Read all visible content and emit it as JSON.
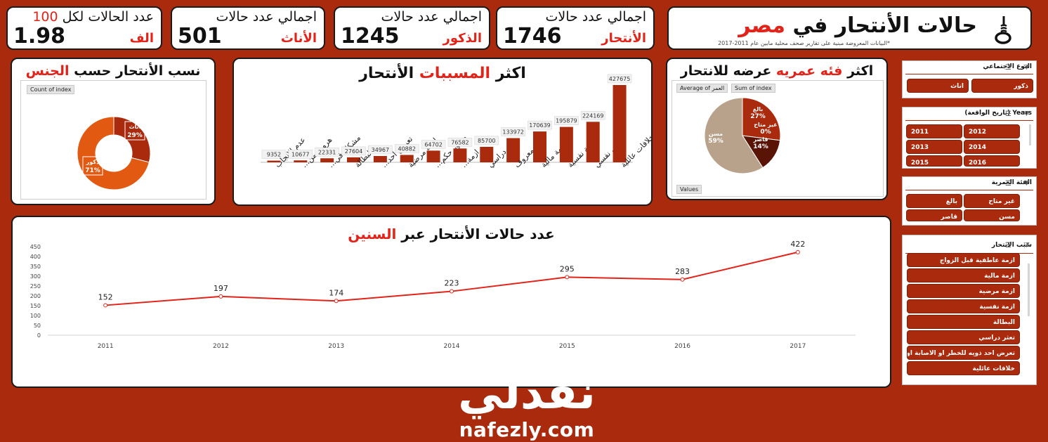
{
  "header": {
    "title_main": "حالات الأنتحار في",
    "title_highlight": "مصر",
    "subtitle": "*البيانات المعروضة مبنية على تقارير صحف محلية مابين عام 2011-2017",
    "icon": "noose-icon"
  },
  "kpis": [
    {
      "title": "اجمالي عدد حالات",
      "value": "1746",
      "sub": "الأنتحار"
    },
    {
      "title": "اجمالي عدد حالات",
      "value": "1245",
      "sub": "الذكور"
    },
    {
      "title": "اجمالي عدد حالات",
      "value": "501",
      "sub": "الأناث"
    },
    {
      "title_prefix": "عدد الحالات لكل",
      "title_num": "100",
      "value": "1.98",
      "sub": "الف"
    }
  ],
  "gender_chart": {
    "title_main": "نسب الأنتحار حسب",
    "title_highlight": "الجنس",
    "field_button": "Count of index",
    "chart_data": {
      "type": "pie",
      "donut": true,
      "labels": [
        "اناث",
        "ذكور"
      ],
      "values": [
        29,
        71
      ],
      "data_labels": [
        "29%",
        "71%"
      ],
      "colors": [
        "#a92a0d",
        "#e25a12"
      ]
    }
  },
  "causes_chart": {
    "title_prefix": "اكثر",
    "title_highlight": "المسببات",
    "title_suffix": "الأنتحار",
    "chart_data": {
      "type": "bar",
      "categories": [
        "عدم الانجاب",
        "هروب من...",
        "مشكلة في...",
        "البطالة",
        "تعرض احد...",
        "ازمة مرضية",
        "صدور حكم...",
        "ازمة...",
        "تعثر دراسي",
        "غير معروف",
        "ازمة مالية",
        "ازمة نفسية",
        "مرض نفسي",
        "خلافات عائلية"
      ],
      "values": [
        9352,
        10677,
        22331,
        27604,
        34967,
        40882,
        64702,
        76582,
        85700,
        133972,
        170639,
        195879,
        224169,
        427675
      ],
      "color": "#a92a0d"
    }
  },
  "age_chart": {
    "title_prefix": "اكثر",
    "title_highlight": "فئه عمريه",
    "title_suffix": "عرضه للانتحار",
    "field_buttons": [
      "Average of العمر",
      "Sum of index"
    ],
    "values_button": "Values",
    "chart_data": {
      "type": "pie",
      "labels": [
        "بالغ",
        "غير متاح",
        "قاصر",
        "مسن"
      ],
      "values": [
        27,
        0,
        14,
        59
      ],
      "data_labels": [
        "27%",
        "0%",
        "14%",
        "59%"
      ],
      "colors": [
        "#a92a0d",
        "#6e1a08",
        "#5a1406",
        "#b9a28c"
      ]
    }
  },
  "yearly_chart": {
    "title_main": "عدد حالات الأنتحار عبر",
    "title_highlight": "السنين",
    "chart_data": {
      "type": "line",
      "x": [
        "2011",
        "2012",
        "2013",
        "2014",
        "2015",
        "2016",
        "2017"
      ],
      "y": [
        152,
        197,
        174,
        223,
        295,
        283,
        422
      ],
      "ylim": [
        0,
        450
      ],
      "yticks": [
        "0",
        "50",
        "100",
        "150",
        "200",
        "250",
        "300",
        "350",
        "400",
        "450"
      ],
      "color": "#e2231a",
      "grid": false
    }
  },
  "slicers": {
    "gender": {
      "title": "النوع الاجتماعي",
      "items": [
        "ذكور",
        "اناث"
      ]
    },
    "years": {
      "title": "Years (تاريخ الواقعة)",
      "items": [
        "2012",
        "2011",
        "2014",
        "2013",
        "2016",
        "2015"
      ]
    },
    "age": {
      "title": "الفئة العمرية",
      "items": [
        "غير متاح",
        "بالغ",
        "مسن",
        "قاصر"
      ]
    },
    "cause": {
      "title": "سبب الانتحار",
      "items": [
        "ازمة عاطفية قبل الزواج",
        "ازمة مالية",
        "ازمة مرضية",
        "ازمة نفسية",
        "البطالة",
        "تعثر دراسي",
        "تعرض احد ذويه للخطر او الاصابة او ...",
        "خلافات عائلية"
      ]
    }
  },
  "watermark": {
    "arabic": "نفذلي",
    "latin": "nafezly.com"
  }
}
